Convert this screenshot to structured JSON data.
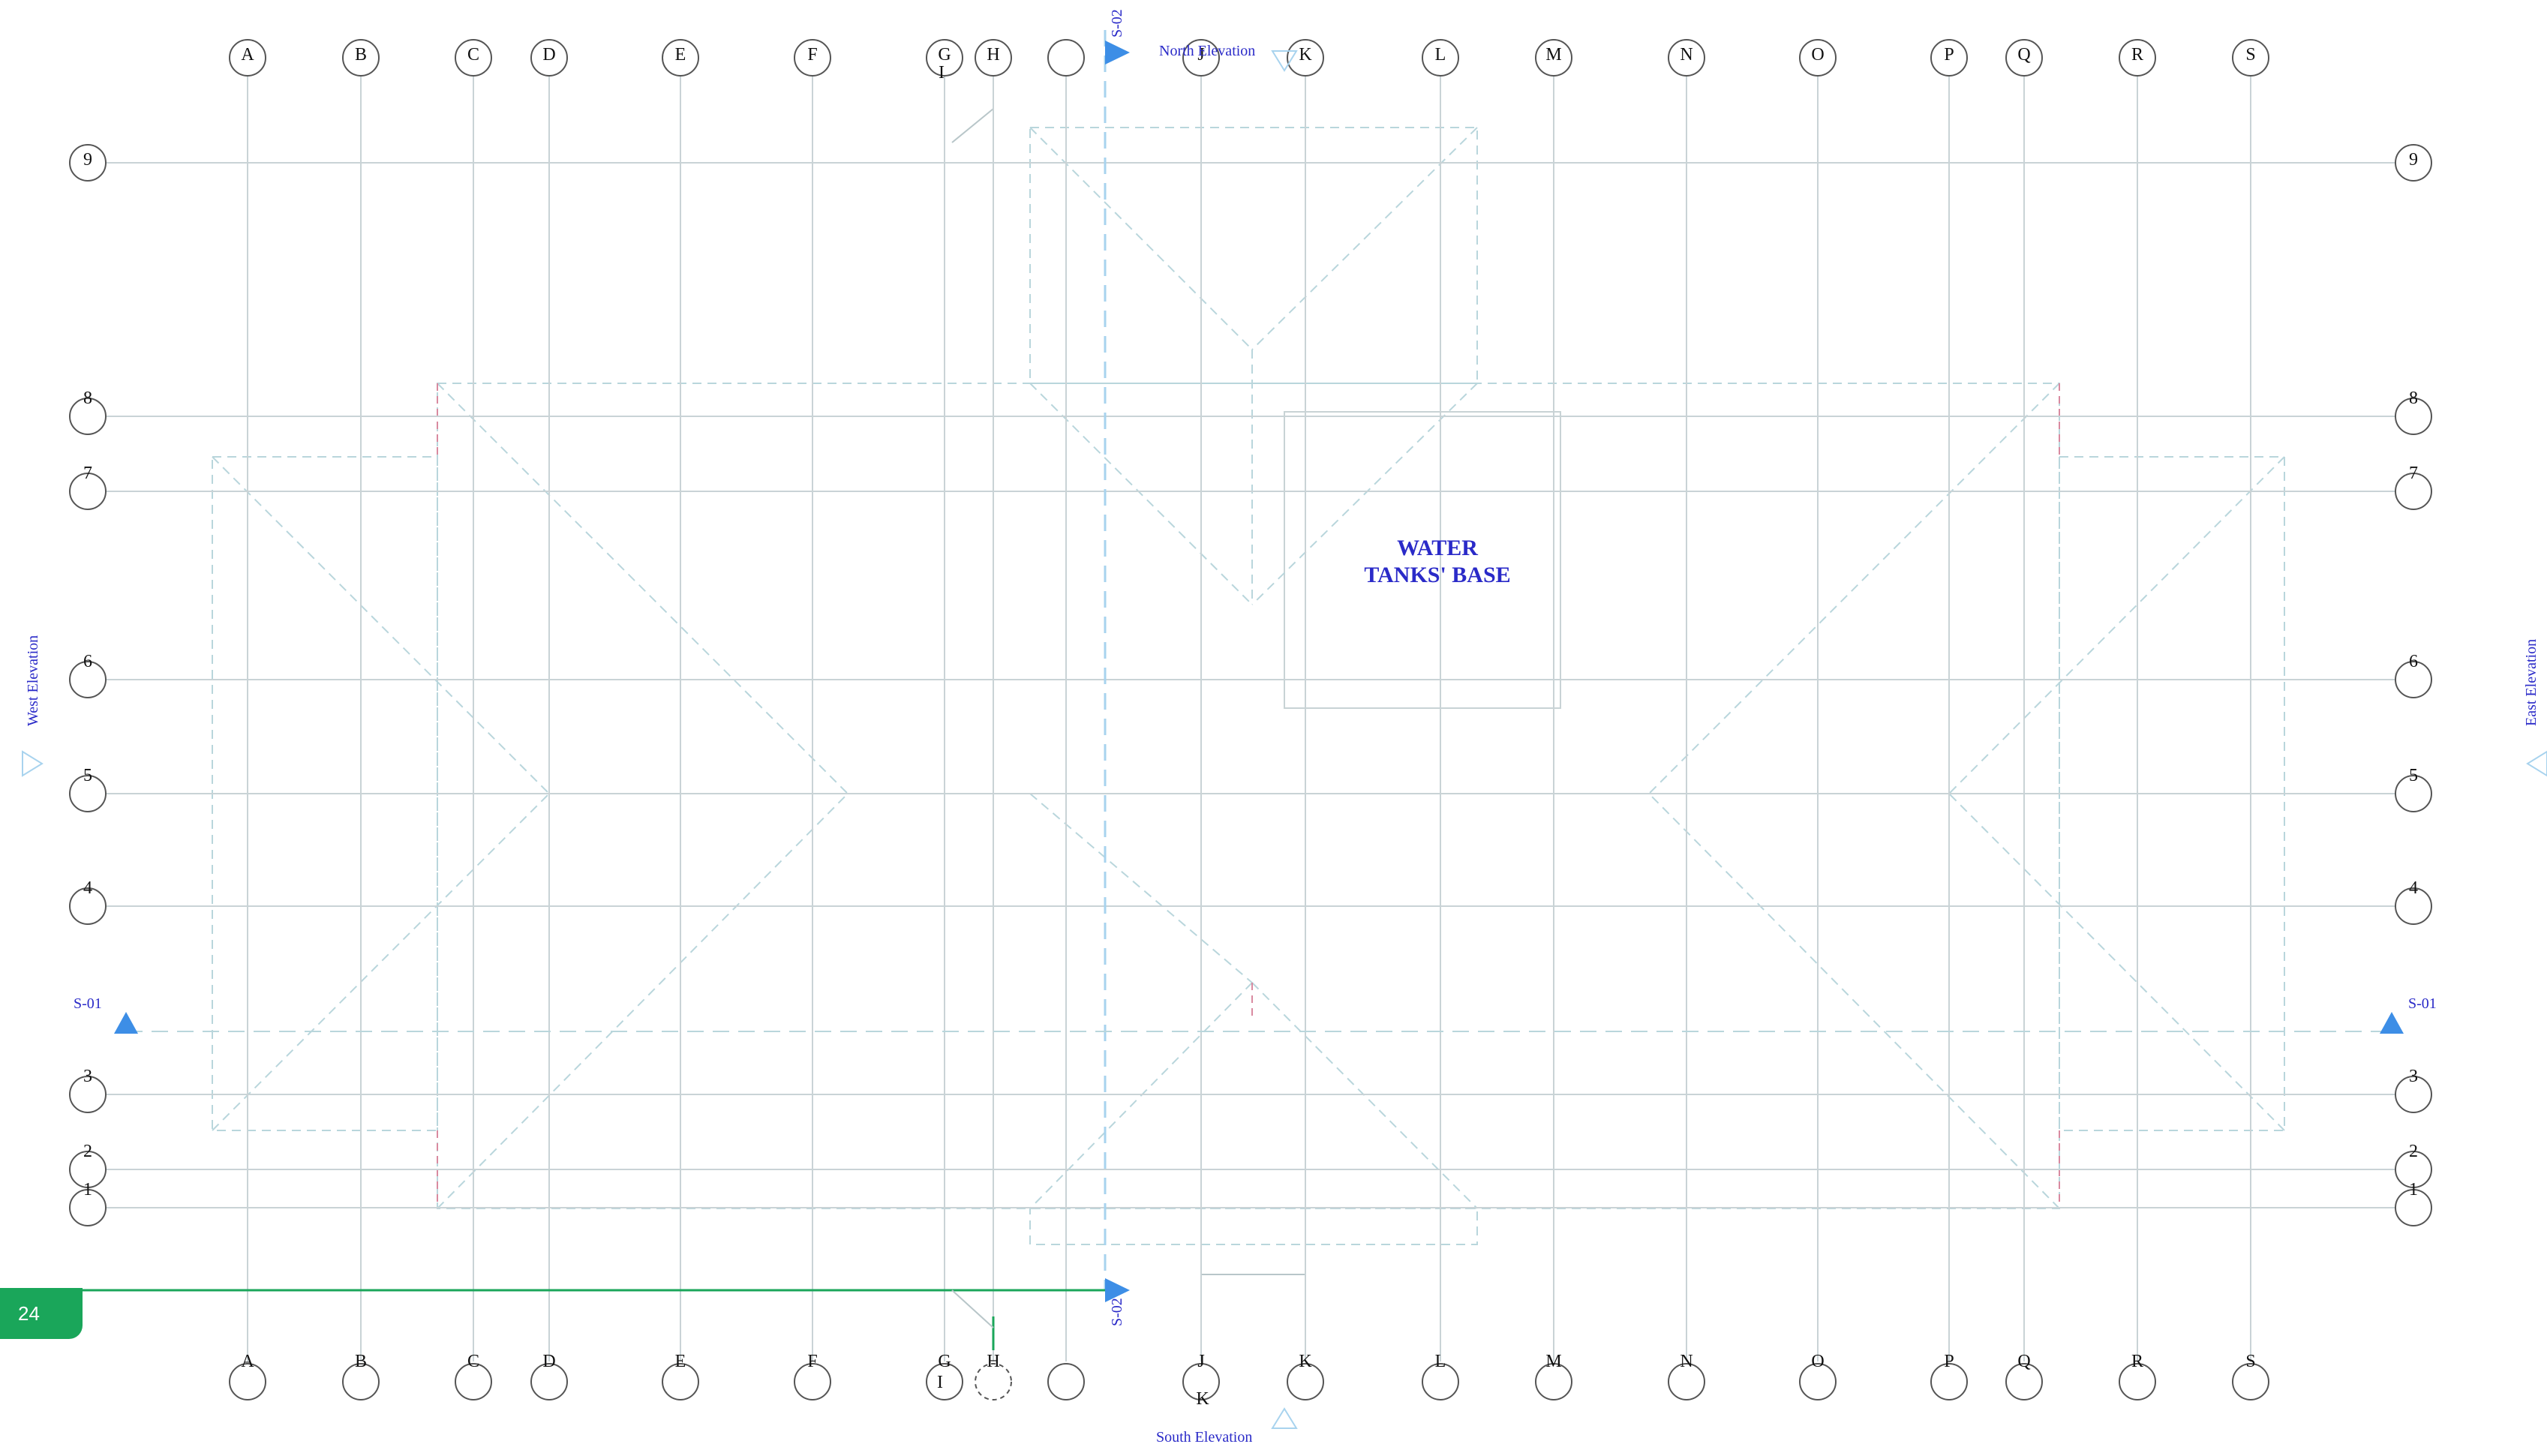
{
  "drawing": {
    "columns": [
      "A",
      "B",
      "C",
      "D",
      "E",
      "F",
      "G",
      "H",
      "",
      "J",
      "K",
      "L",
      "M",
      "N",
      "O",
      "P",
      "Q",
      "R",
      "S"
    ],
    "rows": [
      "9",
      "8",
      "7",
      "6",
      "5",
      "4",
      "3",
      "2",
      "1"
    ],
    "sub_label_top": "I",
    "sub_label_bottom_g": "I",
    "sub_label_bottom_j": "K",
    "room_label": [
      "WATER",
      "TANKS' BASE"
    ],
    "elevations": {
      "north": "North Elevation",
      "south": "South Elevation",
      "west": "West Elevation",
      "east": "East Elevation"
    },
    "sections": {
      "s01": "S-01",
      "s02": "S-02"
    },
    "colors": {
      "grid_line": "#c9d3d6",
      "bubble": "#555555",
      "text_blue": "#2a2ac8",
      "marker_blue": "#3d8ee6",
      "roof_line": "#b9d6dc",
      "dashed_red": "#d98aa0",
      "section_line": "#a8d3ee",
      "green": "#1aa65a"
    }
  },
  "page_number": "24"
}
